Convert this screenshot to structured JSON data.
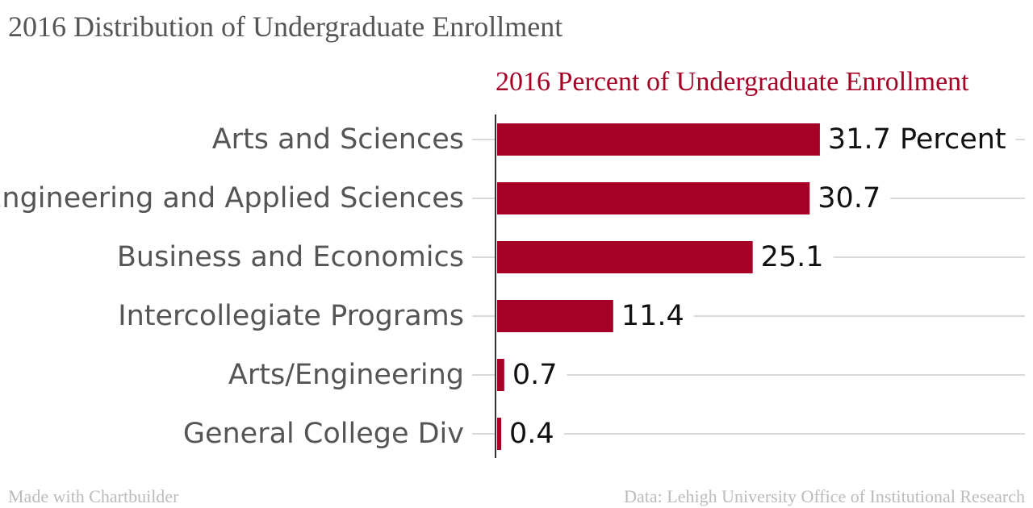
{
  "title": "2016 Distribution of Undergraduate Enrollment",
  "footer": {
    "credit": "Made with Chartbuilder",
    "source": "Data: Lehigh University Office of Institutional Research"
  },
  "colors": {
    "bar": "#a50026",
    "title": "#555555",
    "label": "#555555",
    "value": "#111111",
    "grid": "#d9d9d9",
    "footer": "#bbbbbb",
    "axis": "#333333"
  },
  "chart_data": {
    "type": "bar",
    "orientation": "horizontal",
    "series_title": "2016 Percent of Undergraduate Enrollment",
    "categories": [
      "Arts and Sciences",
      "Engineering and Applied Sciences",
      "Business and Economics",
      "Intercollegiate Programs",
      "Arts/Engineering",
      "General College Div"
    ],
    "values": [
      31.7,
      30.7,
      25.1,
      11.4,
      0.7,
      0.4
    ],
    "value_labels": [
      "31.7 Percent",
      "30.7",
      "25.1",
      "11.4",
      "0.7",
      "0.4"
    ],
    "xlim": [
      0,
      52
    ],
    "grid": true
  }
}
